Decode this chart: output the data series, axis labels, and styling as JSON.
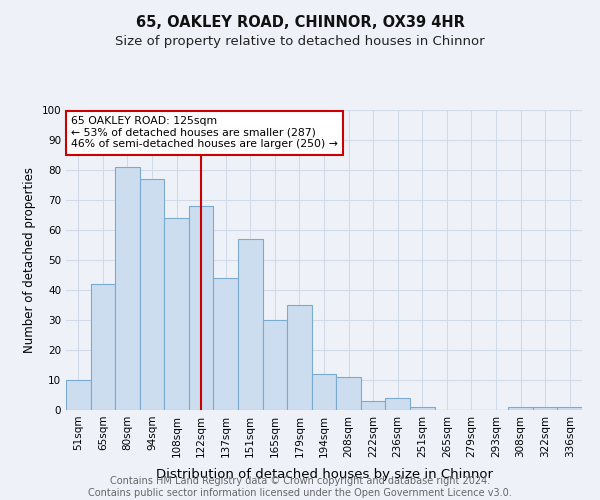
{
  "title1": "65, OAKLEY ROAD, CHINNOR, OX39 4HR",
  "title2": "Size of property relative to detached houses in Chinnor",
  "xlabel": "Distribution of detached houses by size in Chinnor",
  "ylabel": "Number of detached properties",
  "bin_labels": [
    "51sqm",
    "65sqm",
    "80sqm",
    "94sqm",
    "108sqm",
    "122sqm",
    "137sqm",
    "151sqm",
    "165sqm",
    "179sqm",
    "194sqm",
    "208sqm",
    "222sqm",
    "236sqm",
    "251sqm",
    "265sqm",
    "279sqm",
    "293sqm",
    "308sqm",
    "322sqm",
    "336sqm"
  ],
  "values": [
    10,
    42,
    81,
    77,
    64,
    68,
    44,
    57,
    30,
    35,
    12,
    11,
    3,
    4,
    1,
    0,
    0,
    0,
    1,
    1,
    1
  ],
  "bar_color": "#ccddf0",
  "bar_edge_color": "#7aaad0",
  "vline_x": 5.0,
  "vline_color": "#cc0000",
  "annotation_text": "65 OAKLEY ROAD: 125sqm\n← 53% of detached houses are smaller (287)\n46% of semi-detached houses are larger (250) →",
  "annotation_box_color": "#ffffff",
  "annotation_box_edge": "#cc0000",
  "ylim": [
    0,
    100
  ],
  "yticks": [
    0,
    10,
    20,
    30,
    40,
    50,
    60,
    70,
    80,
    90,
    100
  ],
  "footnote": "Contains HM Land Registry data © Crown copyright and database right 2024.\nContains public sector information licensed under the Open Government Licence v3.0.",
  "bg_color": "#eef2f8",
  "grid_color": "#d0dae8",
  "title1_fontsize": 10.5,
  "title2_fontsize": 9.5,
  "xlabel_fontsize": 9.5,
  "ylabel_fontsize": 8.5,
  "tick_fontsize": 7.5,
  "footnote_fontsize": 7.0,
  "footnote_color": "#666666"
}
